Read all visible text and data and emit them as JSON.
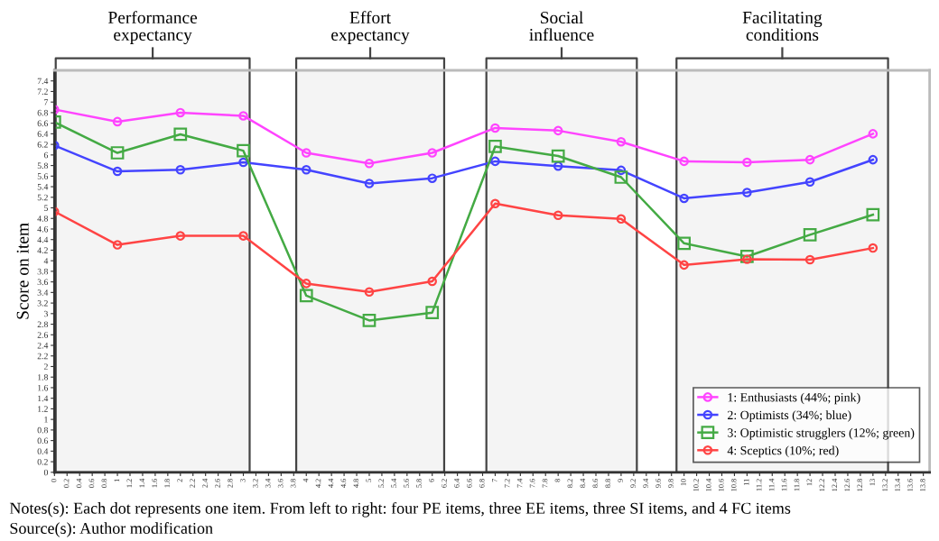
{
  "chart_data": {
    "type": "line",
    "ylabel": "Score on item",
    "x": [
      0,
      1,
      2,
      3,
      4,
      5,
      6,
      7,
      8,
      9,
      10,
      11,
      12,
      13
    ],
    "series": [
      {
        "name": "1: Enthusiasts (44%; pink)",
        "color": "#ff44ff",
        "marker": "circle",
        "values": [
          6.86,
          6.63,
          6.8,
          6.74,
          6.04,
          5.84,
          6.04,
          6.51,
          6.46,
          6.25,
          5.88,
          5.86,
          5.91,
          6.4
        ]
      },
      {
        "name": "2: Optimists (34%; blue)",
        "color": "#4444ff",
        "marker": "circle",
        "values": [
          6.18,
          5.69,
          5.72,
          5.86,
          5.72,
          5.46,
          5.56,
          5.88,
          5.79,
          5.71,
          5.18,
          5.29,
          5.49,
          5.91
        ]
      },
      {
        "name": "3: Optimistic strugglers (12%; green)",
        "color": "#44aa44",
        "marker": "square",
        "values": [
          6.62,
          6.04,
          6.39,
          6.08,
          3.34,
          2.87,
          3.02,
          6.16,
          5.98,
          5.58,
          4.33,
          4.08,
          4.49,
          4.87
        ]
      },
      {
        "name": "4: Sceptics (10%; red)",
        "color": "#ff4444",
        "marker": "circle",
        "values": [
          4.93,
          4.3,
          4.47,
          4.47,
          3.57,
          3.41,
          3.61,
          5.08,
          4.86,
          4.79,
          3.92,
          4.03,
          4.02,
          4.24
        ]
      }
    ],
    "xlim": [
      0,
      13.9
    ],
    "xticks": [
      0,
      0.2,
      0.4,
      0.6,
      0.8,
      1,
      1.2,
      1.4,
      1.6,
      1.8,
      2,
      2.2,
      2.4,
      2.6,
      2.8,
      3,
      3.2,
      3.4,
      3.6,
      3.8,
      4,
      4.2,
      4.4,
      4.6,
      4.8,
      5,
      5.2,
      5.4,
      5.6,
      5.8,
      6,
      6.2,
      6.4,
      6.6,
      6.8,
      7,
      7.2,
      7.4,
      7.6,
      7.8,
      8,
      8.2,
      8.4,
      8.6,
      8.8,
      9,
      9.2,
      9.4,
      9.6,
      9.8,
      10,
      10.2,
      10.4,
      10.6,
      10.8,
      11,
      11.2,
      11.4,
      11.6,
      11.8,
      12,
      12.2,
      12.4,
      12.6,
      12.8,
      13,
      13.2,
      13.4,
      13.6,
      13.8
    ],
    "ylim": [
      0,
      7.6
    ],
    "yticks": [
      0,
      0.2,
      0.4,
      0.6,
      0.8,
      1,
      1.2,
      1.4,
      1.6,
      1.8,
      2,
      2.2,
      2.4,
      2.6,
      2.8,
      3,
      3.2,
      3.4,
      3.6,
      3.8,
      4,
      4.2,
      4.4,
      4.6,
      4.8,
      5,
      5.2,
      5.4,
      5.6,
      5.8,
      6,
      6.2,
      6.4,
      6.6,
      6.8,
      7,
      7.2,
      7.4
    ],
    "bands": [
      {
        "axis": "x",
        "from": 0.02,
        "to": 3.1,
        "label": "Performance\nexpectancy",
        "color": "#444444"
      },
      {
        "axis": "x",
        "from": 3.84,
        "to": 6.19,
        "label": "Effort\nexpectancy",
        "color": "#444444"
      },
      {
        "axis": "x",
        "from": 6.86,
        "to": 9.25,
        "label": "Social\ninfluence",
        "color": "#444444"
      },
      {
        "axis": "x",
        "from": 9.88,
        "to": 13.24,
        "label": "Facilitating\nconditions",
        "color": "#444444"
      }
    ],
    "legend": "bottom right",
    "grid": false,
    "annotations": [
      "Notes(s): Each dot represents one item. From left to right: four PE items, three EE items, three SI items, and 4 FC items",
      "Source(s): Author modification"
    ]
  }
}
